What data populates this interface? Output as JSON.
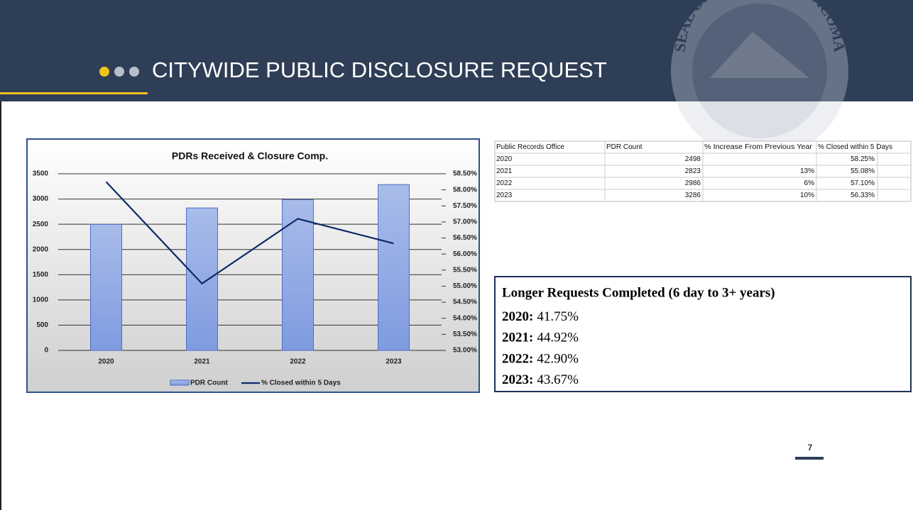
{
  "header": {
    "title": "CITYWIDE PUBLIC DISCLOSURE REQUEST",
    "seal_text": "SEAL OF THE CITY OF TACOMA"
  },
  "chart_data": {
    "type": "bar",
    "title": "PDRs Received & Closure Comp.",
    "categories": [
      "2020",
      "2021",
      "2022",
      "2023"
    ],
    "series": [
      {
        "name": "PDR Count",
        "color": "#8fa9e0",
        "type": "bar",
        "values": [
          2498,
          2823,
          2986,
          3286
        ]
      },
      {
        "name": "% Closed within 5 Days",
        "color": "#0d2a66",
        "type": "line",
        "axis": "y2",
        "values": [
          58.25,
          55.08,
          57.1,
          56.33
        ]
      }
    ],
    "ylim": [
      0,
      3500
    ],
    "yticks": [
      0,
      500,
      1000,
      1500,
      2000,
      2500,
      3000,
      3500
    ],
    "y2lim": [
      53,
      58.5
    ],
    "y2ticks": [
      {
        "value": 53,
        "label": "53.00%"
      },
      {
        "value": 53.5,
        "label": "53.50%"
      },
      {
        "value": 54,
        "label": "54.00%"
      },
      {
        "value": 54.5,
        "label": "54.50%"
      },
      {
        "value": 55,
        "label": "55.00%"
      },
      {
        "value": 55.5,
        "label": "55.50%"
      },
      {
        "value": 56,
        "label": "56.00%"
      },
      {
        "value": 56.5,
        "label": "56.50%"
      },
      {
        "value": 57,
        "label": "57.00%"
      },
      {
        "value": 57.5,
        "label": "57.50%"
      },
      {
        "value": 58,
        "label": "58.00%"
      },
      {
        "value": 58.5,
        "label": "58.50%"
      }
    ],
    "grid": true,
    "legend": "bottom"
  },
  "table": {
    "columns": [
      "Public Records Office",
      "PDR Count",
      "% Increase From Previous Year",
      "% Closed within 5 Days"
    ],
    "rows": [
      [
        "2020",
        "2498",
        null,
        "58.25%"
      ],
      [
        "2021",
        "2823",
        "13%",
        "55.08%"
      ],
      [
        "2022",
        "2986",
        "6%",
        "57.10%"
      ],
      [
        "2023",
        "3286",
        "10%",
        "56.33%"
      ]
    ]
  },
  "textbox": {
    "title": "Longer Requests Completed (6 day to 3+ years)",
    "items": [
      {
        "label": "2020:",
        "value": "41.75%"
      },
      {
        "label": "2021:",
        "value": "44.92%"
      },
      {
        "label": "2022:",
        "value": "42.90%"
      },
      {
        "label": "2023:",
        "value": "43.67%"
      }
    ]
  },
  "page_number": "7"
}
